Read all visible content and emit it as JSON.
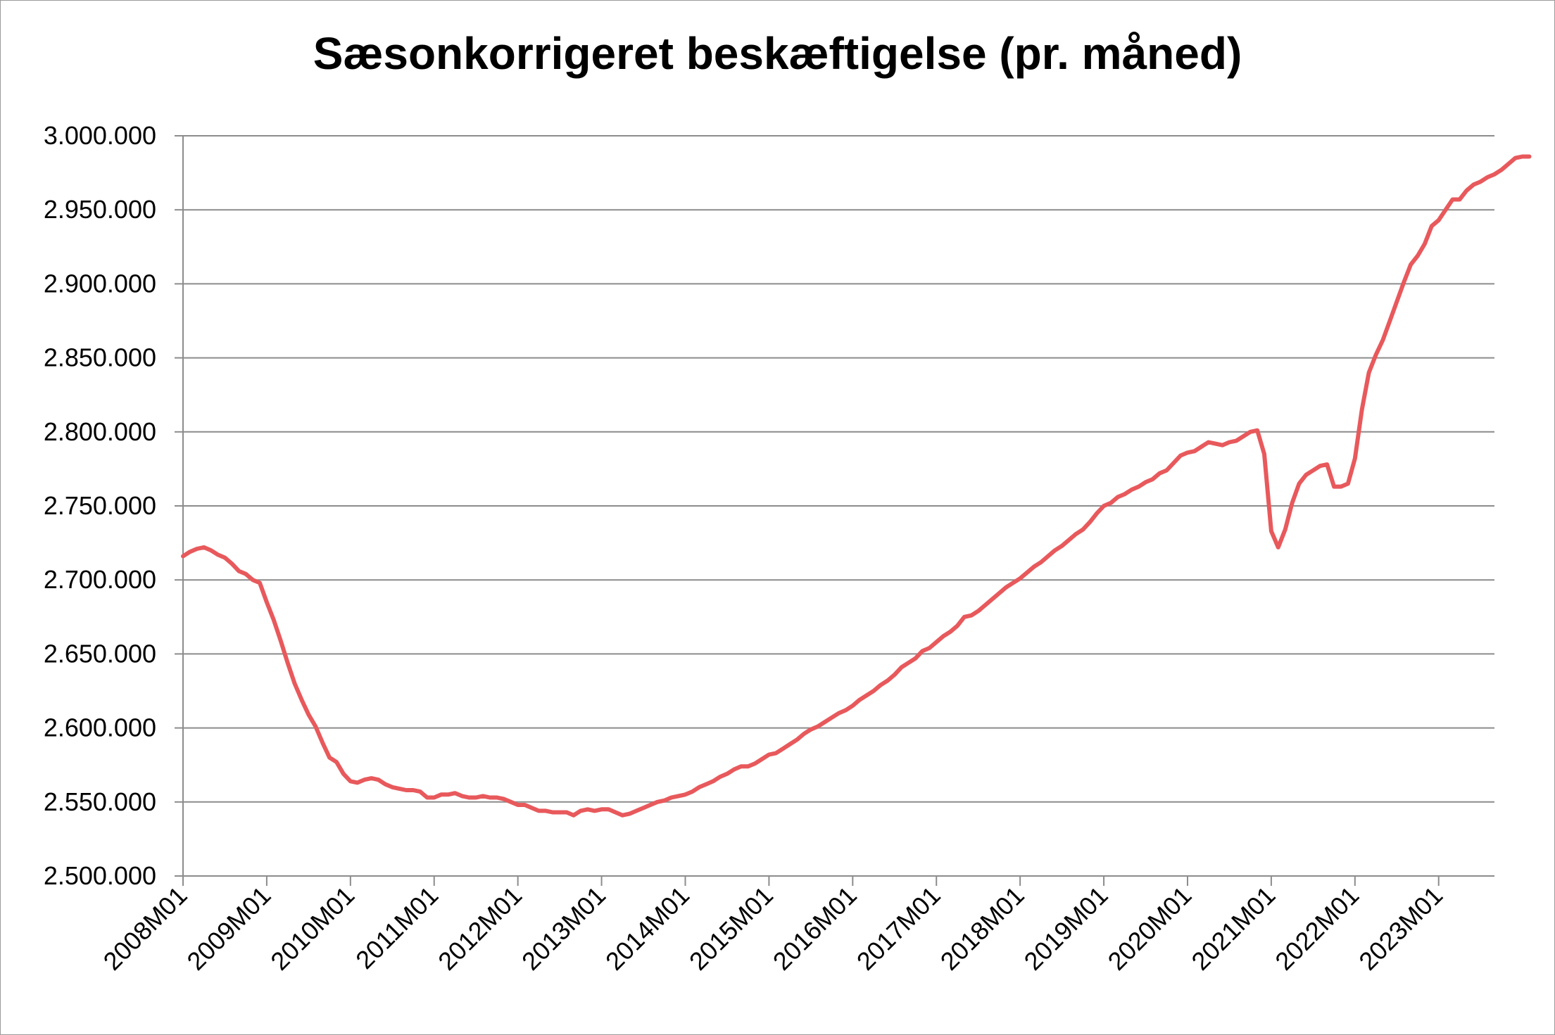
{
  "chart_data": {
    "type": "line",
    "title": "Sæsonkorrigeret beskæftigelse (pr. måned)",
    "xlabel": "",
    "ylabel": "",
    "ylim": [
      2500000,
      3000000
    ],
    "yticks": [
      2500000,
      2550000,
      2600000,
      2650000,
      2700000,
      2750000,
      2800000,
      2850000,
      2900000,
      2950000,
      3000000
    ],
    "ytick_labels": [
      "2.500.000",
      "2.550.000",
      "2.600.000",
      "2.650.000",
      "2.700.000",
      "2.750.000",
      "2.800.000",
      "2.850.000",
      "2.900.000",
      "2.950.000",
      "3.000.000"
    ],
    "xtick_labels": [
      "2008M01",
      "2009M01",
      "2010M01",
      "2011M01",
      "2012M01",
      "2013M01",
      "2014M01",
      "2015M01",
      "2016M01",
      "2017M01",
      "2018M01",
      "2019M01",
      "2020M01",
      "2021M01",
      "2022M01",
      "2023M01"
    ],
    "grid": "horizontal",
    "legend": "none",
    "series_color": "#e8595c",
    "series": [
      {
        "values": [
          2716000,
          2719000,
          2721000,
          2722000,
          2720000,
          2717000,
          2715000,
          2711000,
          2706000,
          2704000,
          2700000,
          2698000,
          2685000,
          2673000,
          2659000,
          2644000,
          2630000,
          2619000,
          2609000,
          2601000,
          2590000,
          2580000,
          2577000,
          2569000,
          2564000,
          2563000,
          2565000,
          2566000,
          2565000,
          2562000,
          2560000,
          2559000,
          2558000,
          2558000,
          2557000,
          2553000,
          2553000,
          2555000,
          2555000,
          2556000,
          2554000,
          2553000,
          2553000,
          2554000,
          2553000,
          2553000,
          2552000,
          2550000,
          2548000,
          2548000,
          2546000,
          2544000,
          2544000,
          2543000,
          2543000,
          2543000,
          2541000,
          2544000,
          2545000,
          2544000,
          2545000,
          2545000,
          2543000,
          2541000,
          2542000,
          2544000,
          2546000,
          2548000,
          2550000,
          2551000,
          2553000,
          2554000,
          2555000,
          2557000,
          2560000,
          2562000,
          2564000,
          2567000,
          2569000,
          2572000,
          2574000,
          2574000,
          2576000,
          2579000,
          2582000,
          2583000,
          2586000,
          2589000,
          2592000,
          2596000,
          2599000,
          2601000,
          2604000,
          2607000,
          2610000,
          2612000,
          2615000,
          2619000,
          2622000,
          2625000,
          2629000,
          2632000,
          2636000,
          2641000,
          2644000,
          2647000,
          2652000,
          2654000,
          2658000,
          2662000,
          2665000,
          2669000,
          2675000,
          2676000,
          2679000,
          2683000,
          2687000,
          2691000,
          2695000,
          2698000,
          2701000,
          2705000,
          2709000,
          2712000,
          2716000,
          2720000,
          2723000,
          2727000,
          2731000,
          2734000,
          2739000,
          2745000,
          2750000,
          2752000,
          2756000,
          2758000,
          2761000,
          2763000,
          2766000,
          2768000,
          2772000,
          2774000,
          2779000,
          2784000,
          2786000,
          2787000,
          2790000,
          2793000,
          2792000,
          2791000,
          2793000,
          2794000,
          2797000,
          2800000,
          2801000,
          2785000,
          2733000,
          2722000,
          2734000,
          2752000,
          2765000,
          2771000,
          2774000,
          2777000,
          2778000,
          2763000,
          2763000,
          2765000,
          2782000,
          2815000,
          2840000,
          2852000,
          2862000,
          2875000,
          2888000,
          2901000,
          2913000,
          2919000,
          2927000,
          2939000,
          2943000,
          2950000,
          2957000,
          2957000,
          2963000,
          2967000,
          2969000,
          2972000,
          2974000,
          2977000,
          2981000,
          2985000,
          2986000,
          2986000
        ]
      }
    ]
  }
}
